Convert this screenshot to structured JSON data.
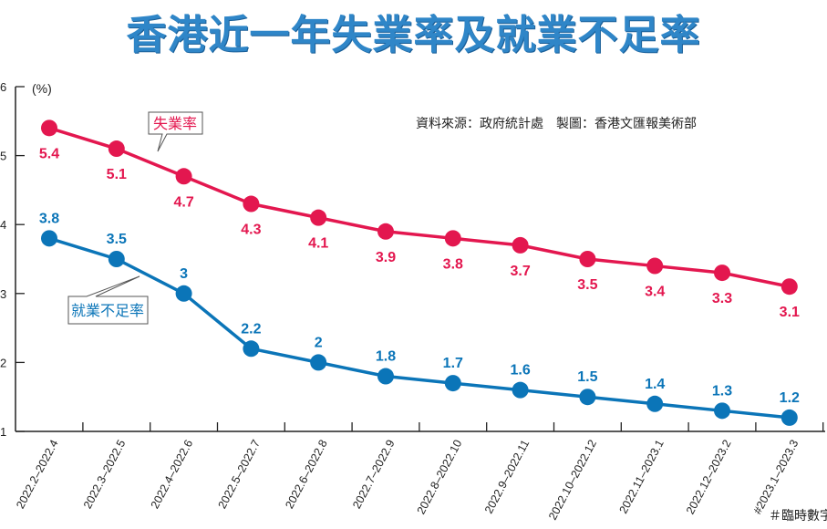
{
  "chart_data": {
    "type": "line",
    "title": "香港近一年失業率及就業不足率",
    "ylabel": "(%)",
    "ylim": [
      1,
      6
    ],
    "yticks": [
      "1",
      "2",
      "3",
      "4",
      "5",
      "6"
    ],
    "grid": false,
    "categories": [
      "2022.2–2022.4",
      "2022.3–2022.5",
      "2022.4–2022.6",
      "2022.5–2022.7",
      "2022.6–2022.8",
      "2022.7–2022.9",
      "2022.8–2022.10",
      "2022.9–2022.11",
      "2022.10–2022.12",
      "2022.11–2023.1",
      "2022.12–2023.2",
      "#2023.1–2023.3"
    ],
    "series": [
      {
        "name": "失業率",
        "color": "#e3174f",
        "values": [
          5.4,
          5.1,
          4.7,
          4.3,
          4.1,
          3.9,
          3.8,
          3.7,
          3.5,
          3.4,
          3.3,
          3.1
        ],
        "labels": [
          "5.4",
          "5.1",
          "4.7",
          "4.3",
          "4.1",
          "3.9",
          "3.8",
          "3.7",
          "3.5",
          "3.4",
          "3.3",
          "3.1"
        ]
      },
      {
        "name": "就業不足率",
        "color": "#0b75b8",
        "values": [
          3.8,
          3.5,
          3,
          2.2,
          2,
          1.8,
          1.7,
          1.6,
          1.5,
          1.4,
          1.3,
          1.2
        ],
        "labels": [
          "3.8",
          "3.5",
          "3",
          "2.2",
          "2",
          "1.8",
          "1.7",
          "1.6",
          "1.5",
          "1.4",
          "1.3",
          "1.2"
        ]
      }
    ],
    "source": "資料來源：政府統計處　製圖：香港文匯報美術部",
    "footnote": "＃臨時數字"
  }
}
